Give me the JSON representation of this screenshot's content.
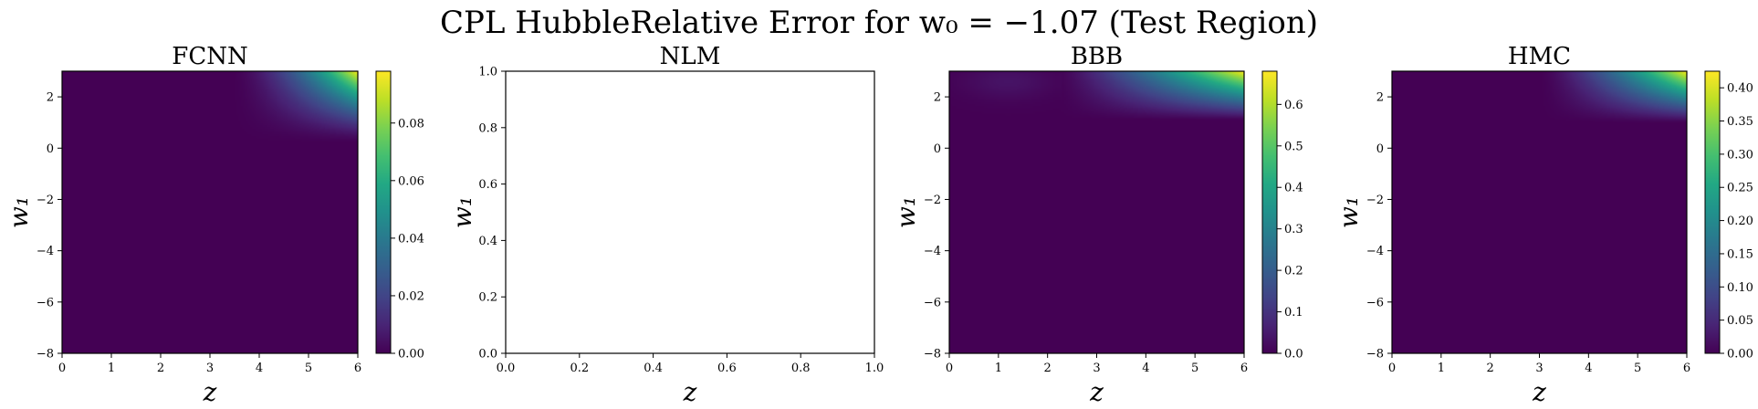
{
  "figure": {
    "title": "CPL HubbleRelative Error for w₀ = −1.07 (Test Region)"
  },
  "colors": {
    "viridis": [
      "#440154",
      "#482475",
      "#414487",
      "#355f8d",
      "#2a788e",
      "#21918c",
      "#22a884",
      "#44bf70",
      "#7ad151",
      "#bddf26",
      "#fde725"
    ]
  },
  "chart_data": [
    {
      "type": "heatmap",
      "title": "FCNN",
      "xlabel": "z",
      "ylabel": "w₁",
      "xlim": [
        0,
        6
      ],
      "ylim": [
        -8,
        3
      ],
      "xticks": [
        "0",
        "1",
        "2",
        "3",
        "4",
        "5",
        "6"
      ],
      "yticks": [
        "−8",
        "−6",
        "−4",
        "−2",
        "0",
        "2"
      ],
      "colorbar": {
        "range": [
          0,
          0.098
        ],
        "ticks": [
          "0.00",
          "0.02",
          "0.04",
          "0.06",
          "0.08"
        ],
        "tick_values": [
          0,
          0.02,
          0.04,
          0.06,
          0.08
        ]
      },
      "field": {
        "kind": "corner",
        "peak": 0.098,
        "z0": 3.4,
        "w0": 0.2,
        "zpow": 1.8,
        "wpow": 1.4
      }
    },
    {
      "type": "heatmap",
      "title": "NLM",
      "xlabel": "z",
      "ylabel": "w₁",
      "xlim": [
        0,
        1
      ],
      "ylim": [
        0,
        1
      ],
      "xticks": [
        "0.0",
        "0.2",
        "0.4",
        "0.6",
        "0.8",
        "1.0"
      ],
      "yticks": [
        "0.0",
        "0.2",
        "0.4",
        "0.6",
        "0.8",
        "1.0"
      ],
      "colorbar": null,
      "field": null
    },
    {
      "type": "heatmap",
      "title": "BBB",
      "xlabel": "z",
      "ylabel": "w₁",
      "xlim": [
        0,
        6
      ],
      "ylim": [
        -8,
        3
      ],
      "xticks": [
        "0",
        "1",
        "2",
        "3",
        "4",
        "5",
        "6"
      ],
      "yticks": [
        "−8",
        "−6",
        "−4",
        "−2",
        "0",
        "2"
      ],
      "colorbar": {
        "range": [
          0,
          0.68
        ],
        "ticks": [
          "0.0",
          "0.1",
          "0.2",
          "0.3",
          "0.4",
          "0.5",
          "0.6"
        ],
        "tick_values": [
          0,
          0.1,
          0.2,
          0.3,
          0.4,
          0.5,
          0.6
        ]
      },
      "field": {
        "kind": "corner",
        "peak": 0.68,
        "z0": 2.2,
        "w0": 1.1,
        "zpow": 1.3,
        "wpow": 1.1,
        "bump": 0.035
      }
    },
    {
      "type": "heatmap",
      "title": "HMC",
      "xlabel": "z",
      "ylabel": "w₁",
      "xlim": [
        0,
        6
      ],
      "ylim": [
        -8,
        3
      ],
      "xticks": [
        "0",
        "1",
        "2",
        "3",
        "4",
        "5",
        "6"
      ],
      "yticks": [
        "−8",
        "−6",
        "−4",
        "−2",
        "0",
        "2"
      ],
      "colorbar": {
        "range": [
          0,
          0.425
        ],
        "ticks": [
          "0.00",
          "0.05",
          "0.10",
          "0.15",
          "0.20",
          "0.25",
          "0.30",
          "0.35",
          "0.40"
        ],
        "tick_values": [
          0,
          0.05,
          0.1,
          0.15,
          0.2,
          0.25,
          0.3,
          0.35,
          0.4
        ]
      },
      "field": {
        "kind": "corner",
        "peak": 0.425,
        "z0": 3.0,
        "w0": 1.0,
        "zpow": 1.5,
        "wpow": 1.1
      }
    }
  ]
}
